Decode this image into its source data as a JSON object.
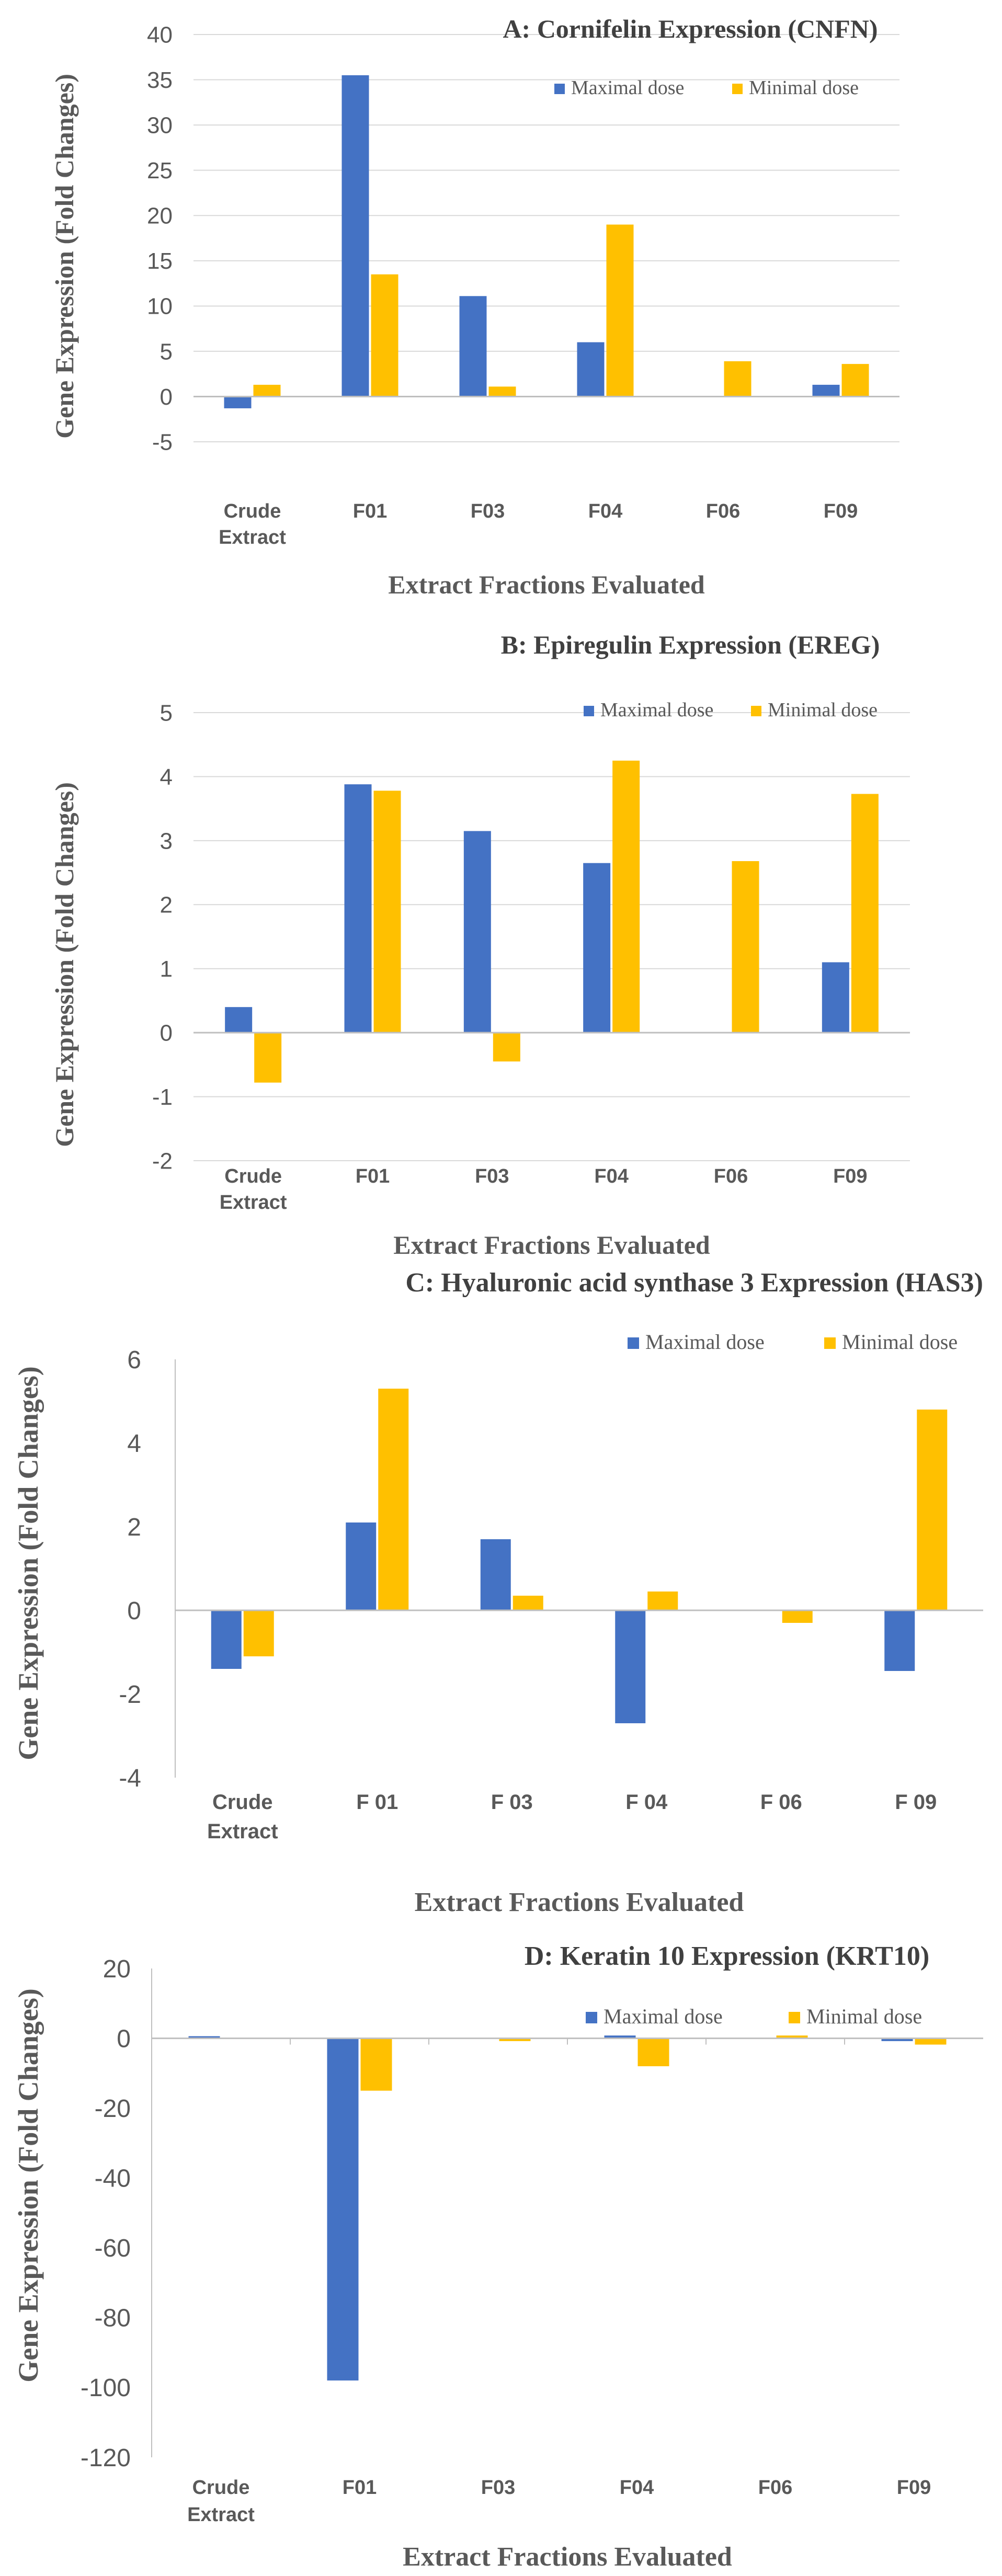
{
  "colors": {
    "maximal": "#4472C4",
    "minimal": "#FFC000",
    "grid": "#d9d9d9",
    "axis": "#bfbfbf",
    "text": "#595959"
  },
  "chart_data": [
    {
      "type": "bar",
      "title": "A: Cornifelin Expression (CNFN)",
      "xlabel": "Extract Fractions Evaluated",
      "ylabel": "Gene Expression (Fold Changes)",
      "categories": [
        "Crude Extract",
        "F01",
        "F03",
        "F04",
        "F06",
        "F09"
      ],
      "series": [
        {
          "name": "Maximal dose",
          "values": [
            -1.3,
            35.5,
            11.1,
            6.0,
            0,
            1.3
          ]
        },
        {
          "name": "Minimal dose",
          "values": [
            1.3,
            13.5,
            1.1,
            19.0,
            3.9,
            3.6
          ]
        }
      ],
      "ylim": [
        -5,
        40
      ],
      "yticks": [
        -5,
        0,
        5,
        10,
        15,
        20,
        25,
        30,
        35,
        40
      ],
      "ytick_labels": [
        "-5",
        "0",
        "5",
        "10",
        "15",
        "20",
        "25",
        "30",
        "35",
        "40"
      ],
      "grid": true,
      "legend": "top-right"
    },
    {
      "type": "bar",
      "title": "B: Epiregulin Expression (EREG)",
      "xlabel": "Extract Fractions Evaluated",
      "ylabel": "Gene Expression (Fold Changes)",
      "categories": [
        "Crude Extract",
        "F01",
        "F03",
        "F04",
        "F06",
        "F09"
      ],
      "series": [
        {
          "name": "Maximal dose",
          "values": [
            0.4,
            3.88,
            3.15,
            2.65,
            0,
            1.1
          ]
        },
        {
          "name": "Minimal dose",
          "values": [
            -0.78,
            3.78,
            -0.45,
            4.25,
            2.68,
            3.73
          ]
        }
      ],
      "ylim": [
        -2,
        5
      ],
      "yticks": [
        -2,
        -1,
        0,
        1,
        2,
        3,
        4,
        5
      ],
      "ytick_labels": [
        "-2",
        "-1",
        "0",
        "1",
        "2",
        "3",
        "4",
        "5"
      ],
      "grid": true,
      "legend": "top-right"
    },
    {
      "type": "bar",
      "title": "C: Hyaluronic acid synthase 3 Expression (HAS3)",
      "xlabel": "Extract Fractions Evaluated",
      "ylabel": "Gene Expression (Fold Changes)",
      "categories": [
        "Crude Extract",
        "F 01",
        "F 03",
        "F 04",
        "F 06",
        "F 09"
      ],
      "series": [
        {
          "name": "Maximal dose",
          "values": [
            -1.4,
            2.1,
            1.7,
            -2.7,
            0,
            -1.45
          ]
        },
        {
          "name": "Minimal dose",
          "values": [
            -1.1,
            5.3,
            0.35,
            0.45,
            -0.3,
            4.8
          ]
        }
      ],
      "ylim": [
        -4,
        6
      ],
      "yticks": [
        -4,
        -2,
        0,
        2,
        4,
        6
      ],
      "ytick_labels": [
        "-4",
        "-2",
        "0",
        "2",
        "4",
        "6"
      ],
      "grid": false,
      "legend": "top-right"
    },
    {
      "type": "bar",
      "title": "D: Keratin 10 Expression (KRT10)",
      "xlabel": "Extract Fractions Evaluated",
      "ylabel": "Gene Expression (Fold Changes)",
      "categories": [
        "Crude Extract",
        "F01",
        "F03",
        "F04",
        "F06",
        "F09"
      ],
      "series": [
        {
          "name": "Maximal dose",
          "values": [
            0.6,
            -98.0,
            0,
            0.8,
            0,
            -0.8
          ]
        },
        {
          "name": "Minimal dose",
          "values": [
            0,
            -15.0,
            -0.8,
            -8.0,
            0.8,
            -1.8
          ]
        }
      ],
      "ylim": [
        -120,
        20
      ],
      "yticks": [
        -120,
        -100,
        -80,
        -60,
        -40,
        -20,
        0,
        20
      ],
      "ytick_labels": [
        "-120",
        "-100",
        "-80",
        "-60",
        "-40",
        "-20",
        "0",
        "20"
      ],
      "grid": false,
      "legend": "top-right"
    }
  ]
}
